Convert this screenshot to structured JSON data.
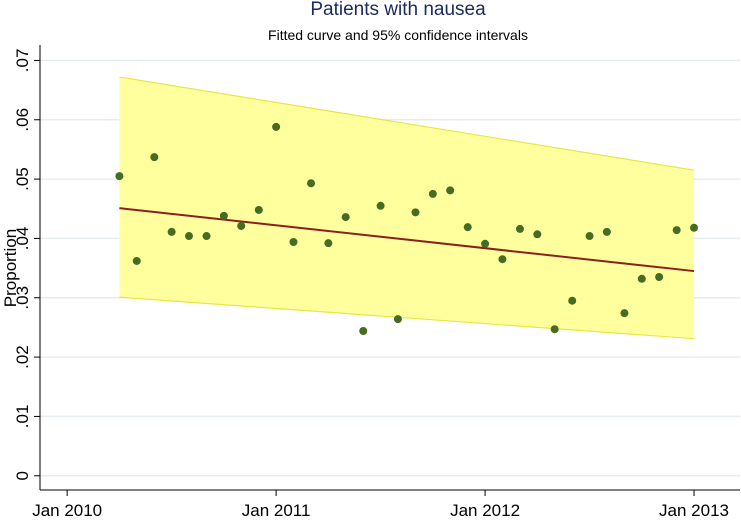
{
  "chart_data": {
    "type": "scatter",
    "title": "Patients with nausea",
    "subtitle": "Fitted curve and 95% confidence intervals",
    "y_label": "Proportion",
    "xlim": [
      2009.87,
      2013.22
    ],
    "ylim": [
      -0.0024,
      0.0726
    ],
    "xticks": [
      {
        "value": 2010,
        "label": "Jan 2010"
      },
      {
        "value": 2011,
        "label": "Jan 2011"
      },
      {
        "value": 2012,
        "label": "Jan 2012"
      },
      {
        "value": 2013,
        "label": "Jan 2013"
      }
    ],
    "yticks": [
      0,
      {
        "value": 0.01,
        "label": ".01"
      },
      {
        "value": 0.02,
        "label": ".02"
      },
      {
        "value": 0.03,
        "label": ".03"
      },
      {
        "value": 0.04,
        "label": ".04"
      },
      {
        "value": 0.05,
        "label": ".05"
      },
      {
        "value": 0.06,
        "label": ".06"
      },
      {
        "value": 0.07,
        "label": ".07"
      }
    ],
    "grid": true,
    "ci": {
      "x": [
        2010.25,
        2013
      ],
      "upper": [
        0.0672,
        0.0515
      ],
      "lower": [
        0.0301,
        0.0231
      ],
      "color": "#ffff9e",
      "edge_color": "#e6e64a"
    },
    "fit": {
      "x": [
        2010.25,
        2013
      ],
      "values": [
        0.0451,
        0.0345
      ],
      "color": "#8b1f1f"
    },
    "series": [
      {
        "color": "#466b22",
        "x": [
          2010.25,
          2010.333,
          2010.417,
          2010.5,
          2010.583,
          2010.667,
          2010.75,
          2010.833,
          2010.917,
          2011,
          2011.083,
          2011.167,
          2011.25,
          2011.333,
          2011.417,
          2011.5,
          2011.583,
          2011.667,
          2011.75,
          2011.833,
          2011.917,
          2012,
          2012.083,
          2012.167,
          2012.25,
          2012.333,
          2012.417,
          2012.5,
          2012.583,
          2012.667,
          2012.75,
          2012.833,
          2012.917,
          2013
        ],
        "values": [
          0.0505,
          0.0362,
          0.0537,
          0.0411,
          0.0404,
          0.0404,
          0.0438,
          0.0421,
          0.0448,
          0.0588,
          0.0394,
          0.0493,
          0.0392,
          0.0436,
          0.0244,
          0.0455,
          0.0264,
          0.0444,
          0.0475,
          0.0481,
          0.0419,
          0.0391,
          0.0365,
          0.0416,
          0.0407,
          0.0247,
          0.0295,
          0.0404,
          0.0411,
          0.0274,
          0.0332,
          0.0335,
          0.0414,
          0.0418
        ]
      }
    ]
  }
}
